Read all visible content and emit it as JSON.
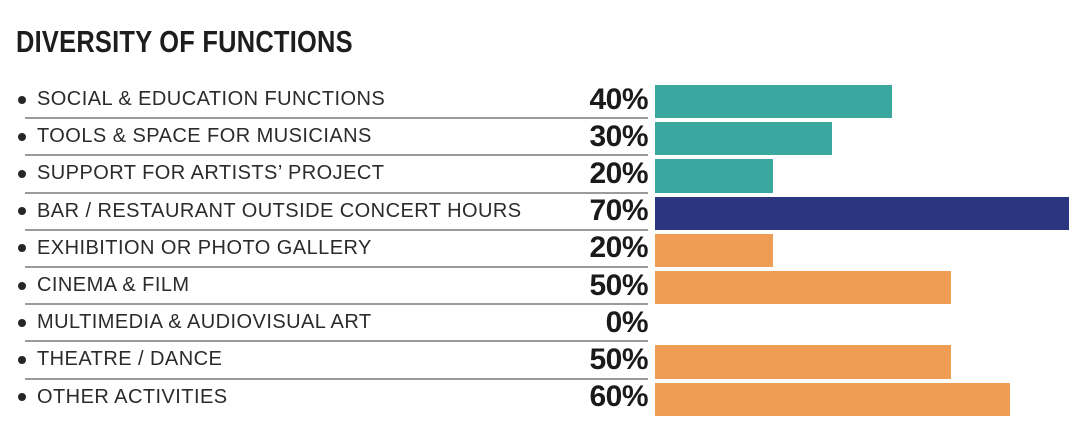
{
  "title": "DIVERSITY OF FUNCTIONS",
  "chart_data": {
    "type": "bar",
    "orientation": "horizontal",
    "title": "DIVERSITY OF FUNCTIONS",
    "unit": "%",
    "scale_max_pct": 70,
    "grid": false,
    "legend": false,
    "palette": {
      "teal": "#3AA89E",
      "navy": "#2B3580",
      "orange": "#EF9D54"
    },
    "divider_color": "#9B9B9B",
    "categories": [
      "SOCIAL & EDUCATION FUNCTIONS",
      "TOOLS & SPACE FOR MUSICIANS",
      "SUPPORT FOR ARTISTS’ PROJECT",
      "BAR / RESTAURANT OUTSIDE CONCERT HOURS",
      "EXHIBITION OR PHOTO GALLERY",
      "CINEMA & FILM",
      "MULTIMEDIA & AUDIOVISUAL ART",
      "THEATRE / DANCE",
      "OTHER ACTIVITIES"
    ],
    "values": [
      40,
      30,
      20,
      70,
      20,
      50,
      0,
      50,
      60
    ],
    "rows": [
      {
        "label": "SOCIAL & EDUCATION FUNCTIONS",
        "value": 40,
        "value_label": "40%",
        "color": "teal"
      },
      {
        "label": "TOOLS & SPACE FOR MUSICIANS",
        "value": 30,
        "value_label": "30%",
        "color": "teal"
      },
      {
        "label": "SUPPORT FOR ARTISTS’ PROJECT",
        "value": 20,
        "value_label": "20%",
        "color": "teal"
      },
      {
        "label": "BAR / RESTAURANT OUTSIDE CONCERT HOURS",
        "value": 70,
        "value_label": "70%",
        "color": "navy"
      },
      {
        "label": "EXHIBITION OR PHOTO GALLERY",
        "value": 20,
        "value_label": "20%",
        "color": "orange"
      },
      {
        "label": "CINEMA & FILM",
        "value": 50,
        "value_label": "50%",
        "color": "orange"
      },
      {
        "label": "MULTIMEDIA & AUDIOVISUAL ART",
        "value": 0,
        "value_label": "0%",
        "color": "none"
      },
      {
        "label": "THEATRE / DANCE",
        "value": 50,
        "value_label": "50%",
        "color": "orange"
      },
      {
        "label": "OTHER ACTIVITIES",
        "value": 60,
        "value_label": "60%",
        "color": "orange"
      }
    ]
  }
}
